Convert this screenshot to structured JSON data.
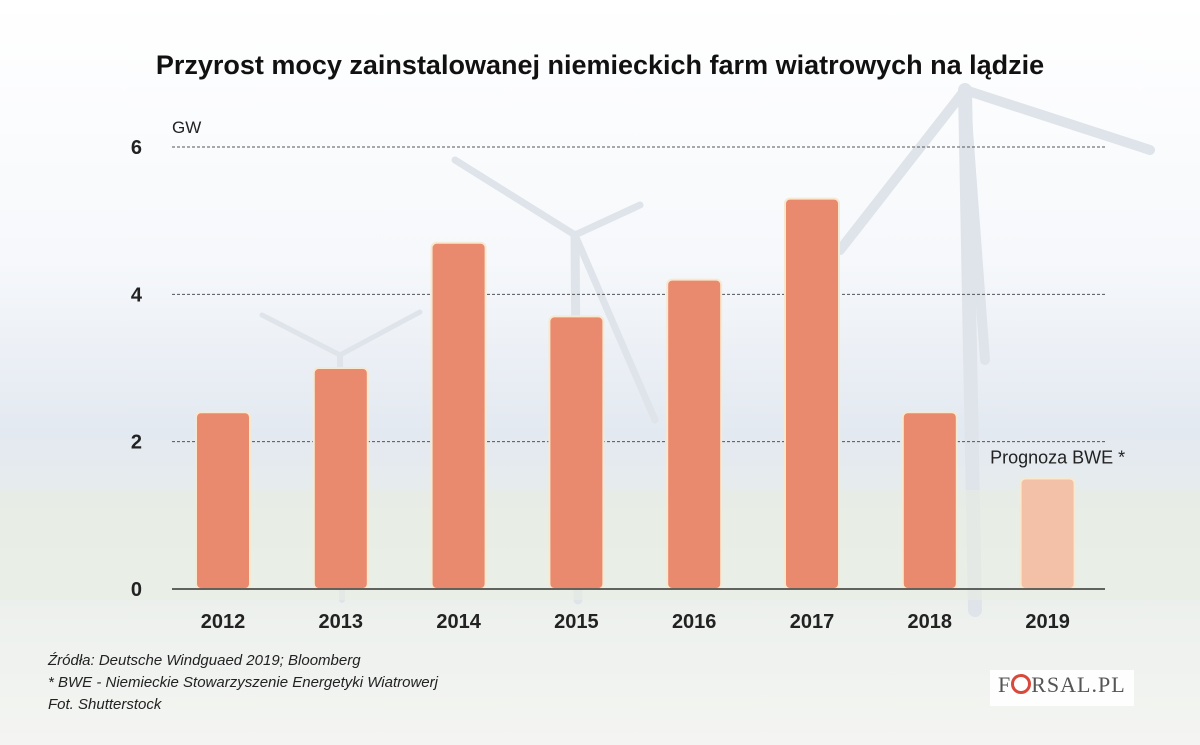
{
  "header": {
    "title": "Przyrost mocy zainstalowanej niemieckich farm wiatrowych na lądzie"
  },
  "chart_data": {
    "type": "bar",
    "title": "Przyrost mocy zainstalowanej niemieckich farm wiatrowych na lądzie",
    "ylabel": "GW",
    "xlabel": "",
    "categories": [
      "2012",
      "2013",
      "2014",
      "2015",
      "2016",
      "2017",
      "2018",
      "2019"
    ],
    "values": [
      2.4,
      3.0,
      4.7,
      3.7,
      4.2,
      5.3,
      2.4,
      1.5
    ],
    "forecast": [
      false,
      false,
      false,
      false,
      false,
      false,
      false,
      true
    ],
    "forecast_label": "Prognoza BWE *",
    "ylim": [
      0,
      6
    ],
    "yticks": [
      0,
      2,
      4,
      6
    ],
    "grid": true,
    "colors": {
      "bar": "#e9896d",
      "forecast_bar": "#f2c1a8",
      "bar_outline": "#f7e9cf"
    }
  },
  "footer": {
    "source": "Źródła: Deutsche Windguaed 2019; Bloomberg",
    "footnote": "* BWE - Niemieckie Stowarzyszenie Energetyki Wiatrowerj",
    "photo": "Fot. Shutterstock",
    "logo": "FORSAL.PL",
    "logo_prefix": "F",
    "logo_suffix": "RSAL.PL"
  }
}
